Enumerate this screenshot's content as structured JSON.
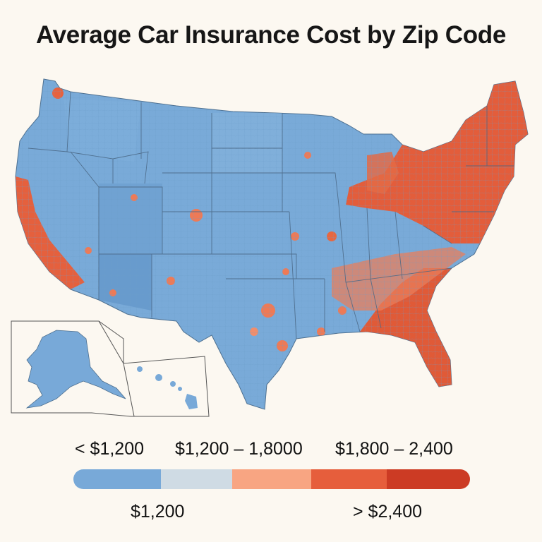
{
  "title": "Average Car Insurance Cost by Zip Code",
  "legend": {
    "top_labels": [
      "< $1,200",
      "$1,200 – 1,8000",
      "$1,800 – 2,400"
    ],
    "bottom_labels": [
      "$1,200",
      "> $2,400"
    ],
    "segments": [
      {
        "color": "#78a9d8",
        "share": 0.22
      },
      {
        "color": "#cfdbe4",
        "share": 0.18
      },
      {
        "color": "#f8a582",
        "share": 0.2
      },
      {
        "color": "#e65e3c",
        "share": 0.19
      },
      {
        "color": "#cc3b24",
        "share": 0.21
      }
    ]
  },
  "colors": {
    "low": "#78a9d8",
    "low_dark": "#5d93c9",
    "mid": "#cfdbe4",
    "high": "#e8623f",
    "high_dark": "#d94a2c",
    "background": "#fcf8f1"
  },
  "regions": {
    "main": "Contiguous United States",
    "insets": [
      "Alaska",
      "Hawaii"
    ]
  }
}
